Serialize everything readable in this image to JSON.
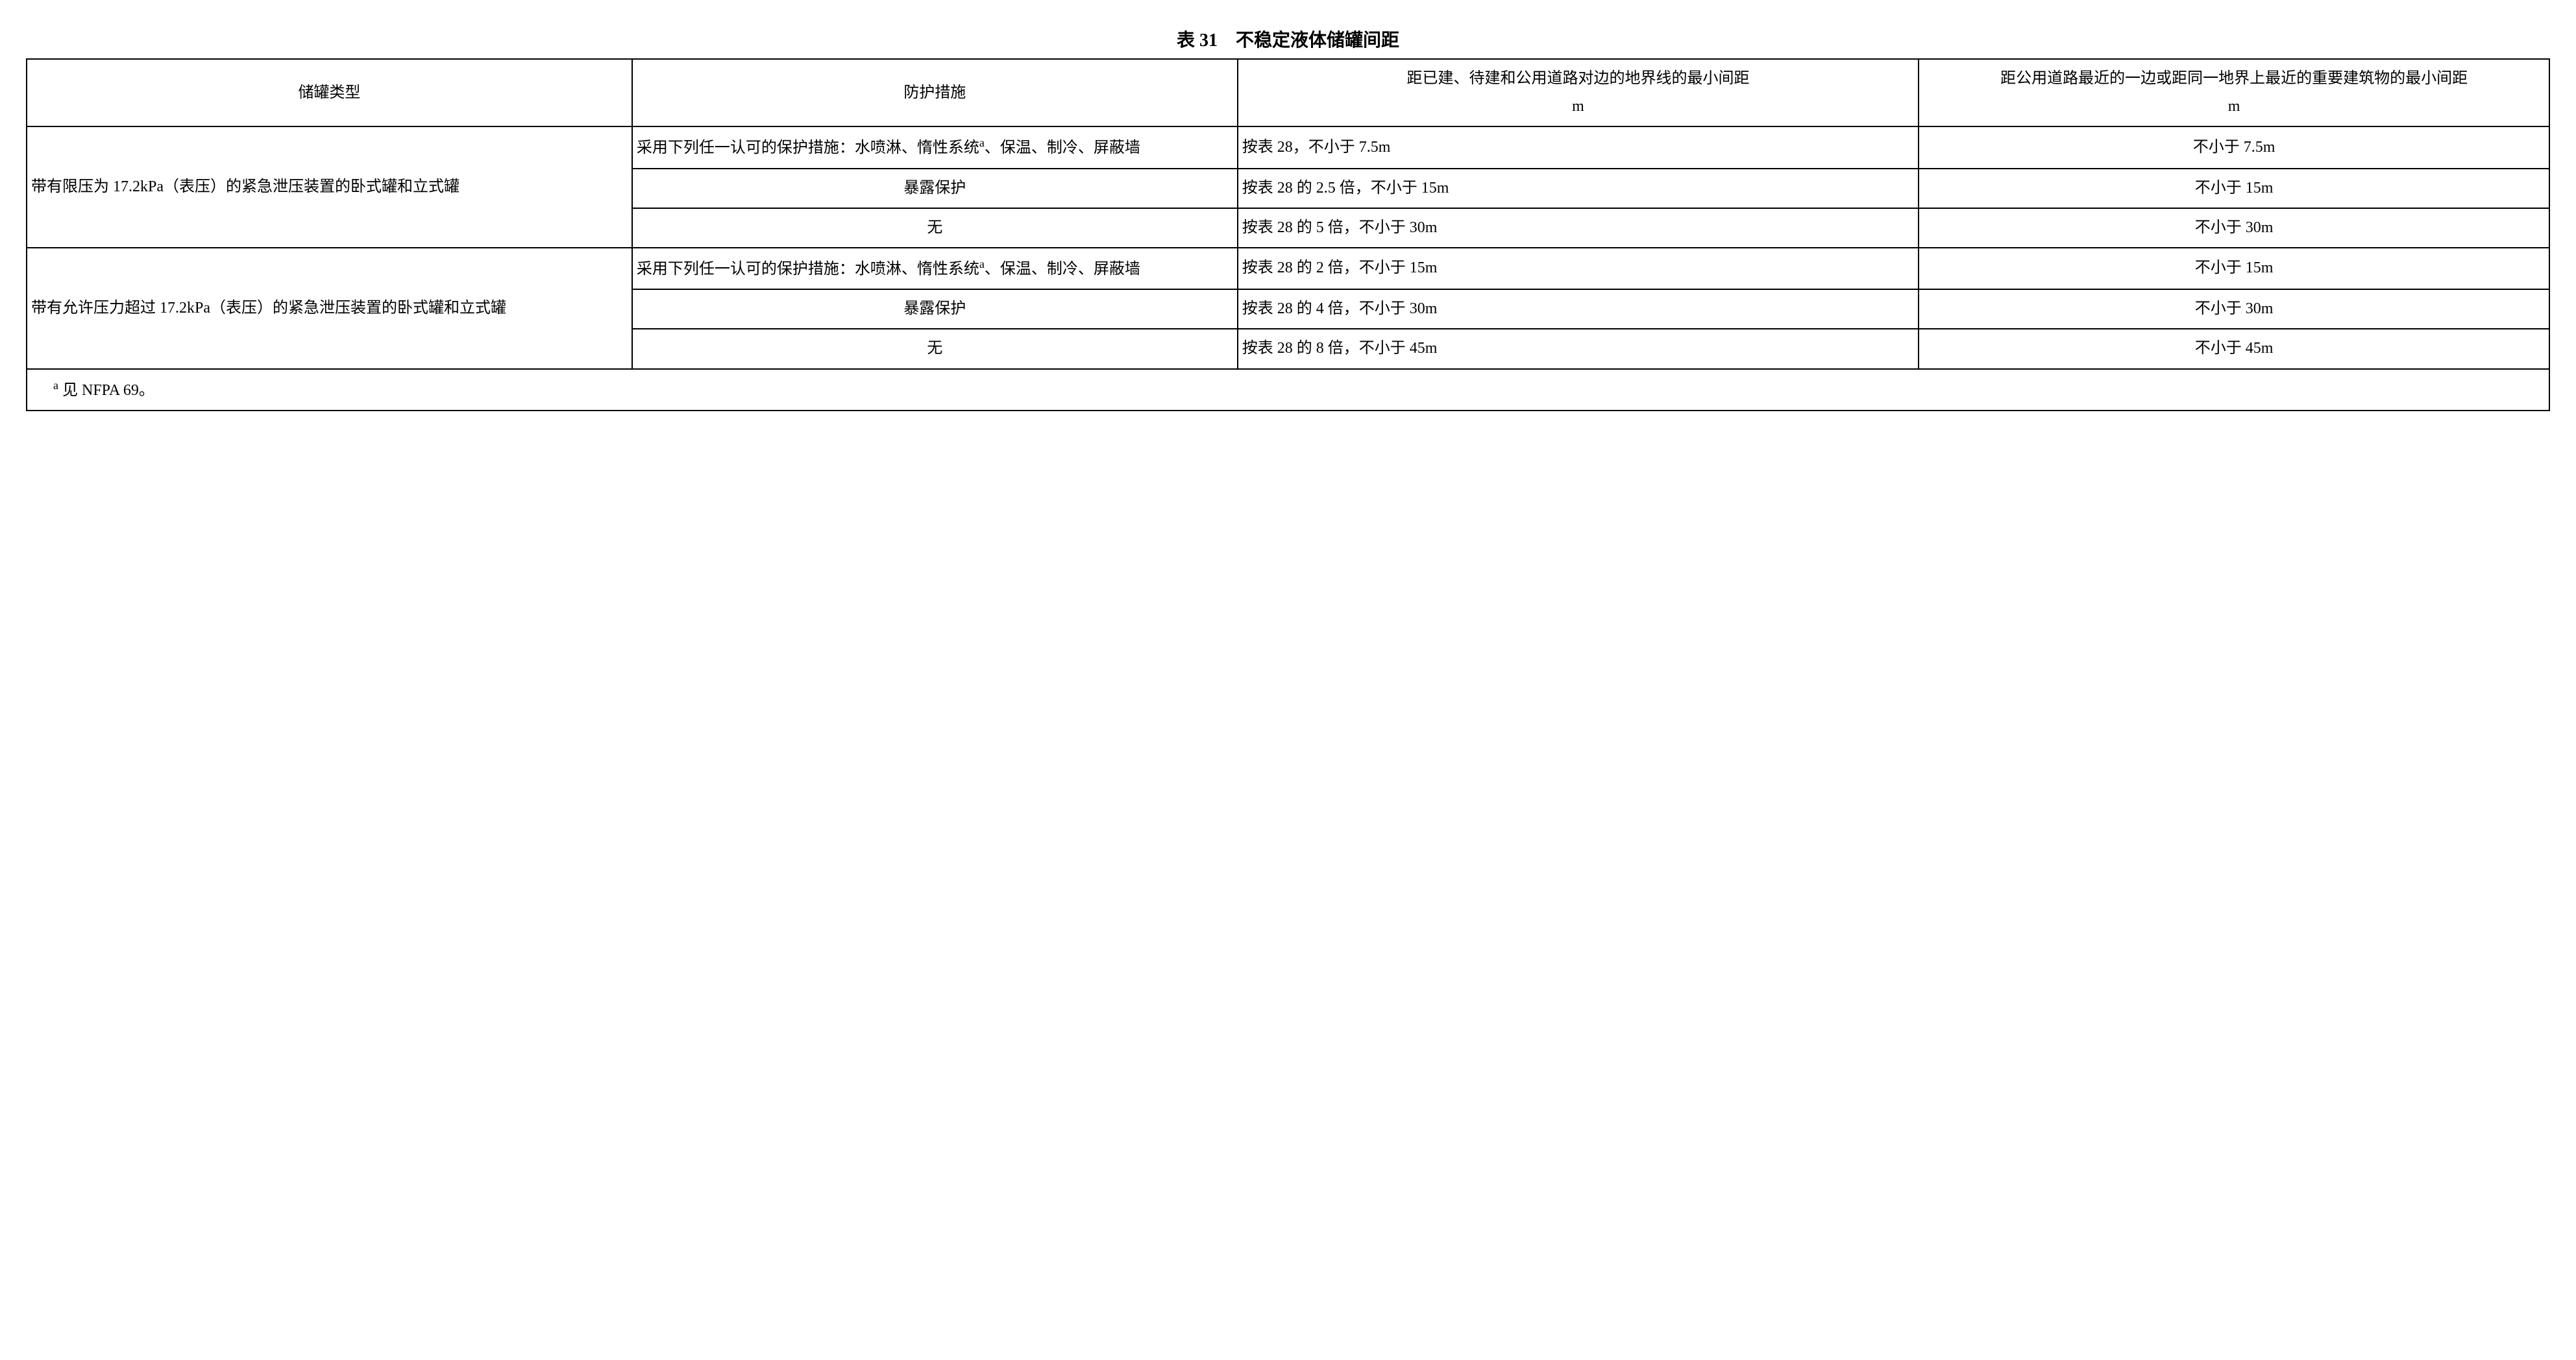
{
  "title": "表 31　不稳定液体储罐间距",
  "title_fontsize": "28px",
  "cell_fontsize": "24px",
  "border_color": "#000000",
  "background_color": "#ffffff",
  "text_color": "#000000",
  "columns": {
    "type": "储罐类型",
    "protection": "防护措施",
    "dist1_line1": "距已建、待建和公用道路对边的地界线的最小间距",
    "dist1_unit": "m",
    "dist2_line1": "距公用道路最近的一边或距同一地界上最近的重要建筑物的最小间距",
    "dist2_unit": "m"
  },
  "group1": {
    "tank_type": "带有限压为 17.2kPa（表压）的紧急泄压装置的卧式罐和立式罐",
    "rows": [
      {
        "protection_pre": "采用下列任一认可的保护措施：水喷淋、惰性系统",
        "protection_sup": "a",
        "protection_post": "、保温、制冷、屏蔽墙",
        "protection_align": "left",
        "dist1": "按表 28，不小于 7.5m",
        "dist2": "不小于 7.5m"
      },
      {
        "protection": "暴露保护",
        "protection_align": "center",
        "dist1": "按表 28 的 2.5 倍，不小于 15m",
        "dist2": "不小于 15m"
      },
      {
        "protection": "无",
        "protection_align": "center",
        "dist1": "按表 28 的 5 倍，不小于 30m",
        "dist2": "不小于 30m"
      }
    ]
  },
  "group2": {
    "tank_type": "带有允许压力超过 17.2kPa（表压）的紧急泄压装置的卧式罐和立式罐",
    "rows": [
      {
        "protection_pre": "采用下列任一认可的保护措施：水喷淋、惰性系统",
        "protection_sup": "a",
        "protection_post": "、保温、制冷、屏蔽墙",
        "protection_align": "left",
        "dist1": "按表 28 的 2 倍，不小于 15m",
        "dist2": "不小于 15m"
      },
      {
        "protection": "暴露保护",
        "protection_align": "center",
        "dist1": "按表 28 的 4 倍，不小于 30m",
        "dist2": "不小于 30m"
      },
      {
        "protection": "无",
        "protection_align": "center",
        "dist1": "按表 28 的 8 倍，不小于 45m",
        "dist2": "不小于 45m"
      }
    ]
  },
  "footnote_sup": "a",
  "footnote_text": " 见 NFPA 69。"
}
